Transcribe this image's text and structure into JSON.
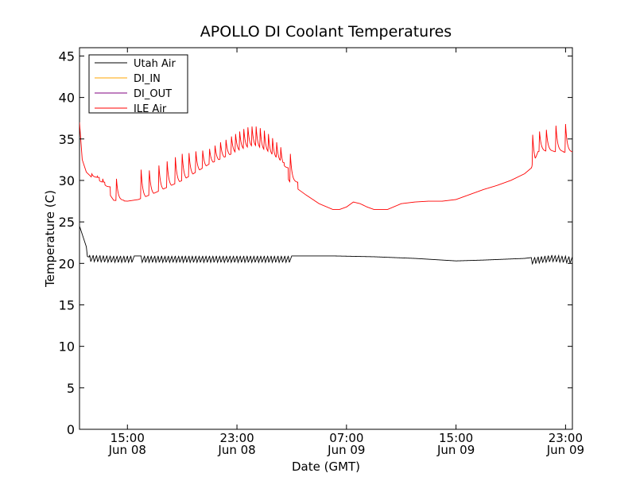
{
  "chart_data": {
    "type": "line",
    "title": "APOLLO DI Coolant Temperatures",
    "xlabel": "Date (GMT)",
    "ylabel": "Temperature (C)",
    "ylim": [
      0,
      46
    ],
    "xlim_hours": [
      11.5,
      47.5
    ],
    "grid": false,
    "legend_position": "top-left",
    "y_ticks": [
      {
        "value": 0,
        "label": "0"
      },
      {
        "value": 5,
        "label": "5"
      },
      {
        "value": 10,
        "label": "10"
      },
      {
        "value": 15,
        "label": "15"
      },
      {
        "value": 20,
        "label": "20"
      },
      {
        "value": 25,
        "label": "25"
      },
      {
        "value": 30,
        "label": "30"
      },
      {
        "value": 35,
        "label": "35"
      },
      {
        "value": 40,
        "label": "40"
      },
      {
        "value": 45,
        "label": "45"
      }
    ],
    "x_ticks": [
      {
        "hour": 15,
        "time": "15:00",
        "date": "Jun 08"
      },
      {
        "hour": 23,
        "time": "23:00",
        "date": "Jun 08"
      },
      {
        "hour": 31,
        "time": "07:00",
        "date": "Jun 09"
      },
      {
        "hour": 39,
        "time": "15:00",
        "date": "Jun 09"
      },
      {
        "hour": 47,
        "time": "23:00",
        "date": "Jun 09"
      }
    ],
    "series": [
      {
        "name": "Utah Air",
        "color": "#000000",
        "baseline_x": [
          11.5,
          12.2,
          14.0,
          16.0,
          20.0,
          24.0,
          27.0,
          30.0,
          33.0,
          36.0,
          39.0,
          41.0,
          44.0,
          46.0,
          47.5
        ],
        "baseline_y": [
          24.5,
          21.0,
          20.9,
          20.9,
          20.9,
          20.9,
          20.9,
          20.9,
          20.8,
          20.6,
          20.3,
          20.4,
          20.6,
          21.0,
          20.8
        ],
        "cycling_x": [
          [
            12.0,
            15.5
          ],
          [
            16.0,
            27.0
          ],
          [
            44.5,
            47.5
          ]
        ],
        "cycling_depth_c": 0.8
      },
      {
        "name": "DI_IN",
        "color": "#ffa500",
        "baseline_x": [],
        "baseline_y": []
      },
      {
        "name": "DI_OUT",
        "color": "#800080",
        "baseline_x": [],
        "baseline_y": []
      },
      {
        "name": "ILE Air",
        "color": "#ff0000",
        "baseline_x": [
          11.5,
          11.7,
          12.0,
          12.5,
          13.0,
          13.5,
          14.0,
          15.0,
          15.8,
          17.0,
          19.0,
          21.0,
          23.0,
          24.0,
          25.0,
          26.0,
          27.0,
          28.0,
          29.0,
          30.0,
          30.5,
          31.0,
          31.5,
          32.0,
          32.5,
          33.0,
          34.0,
          35.0,
          36.0,
          37.0,
          38.0,
          39.0,
          40.0,
          41.0,
          42.0,
          43.0,
          44.0,
          44.5,
          45.0,
          46.0,
          47.0,
          47.5
        ],
        "baseline_y": [
          37.0,
          32.5,
          31.0,
          30.2,
          29.5,
          28.8,
          27.6,
          27.5,
          27.7,
          28.5,
          30.0,
          32.0,
          33.5,
          34.0,
          33.2,
          32.0,
          29.5,
          28.3,
          27.2,
          26.5,
          26.5,
          26.8,
          27.4,
          27.2,
          26.8,
          26.5,
          26.5,
          27.2,
          27.4,
          27.5,
          27.5,
          27.7,
          28.3,
          28.9,
          29.4,
          30.0,
          30.8,
          31.5,
          33.5,
          33.5,
          33.4,
          33.0
        ],
        "spikes": [
          {
            "x": 12.4,
            "peak": 30.8
          },
          {
            "x": 12.8,
            "peak": 30.5
          },
          {
            "x": 13.2,
            "peak": 30.2
          },
          {
            "x": 14.2,
            "peak": 30.2
          },
          {
            "x": 16.0,
            "peak": 31.3
          },
          {
            "x": 16.6,
            "peak": 31.2
          },
          {
            "x": 17.3,
            "peak": 31.8
          },
          {
            "x": 17.9,
            "peak": 32.3
          },
          {
            "x": 18.5,
            "peak": 32.8
          },
          {
            "x": 19.0,
            "peak": 33.2
          },
          {
            "x": 19.5,
            "peak": 33.3
          },
          {
            "x": 20.0,
            "peak": 33.5
          },
          {
            "x": 20.5,
            "peak": 33.6
          },
          {
            "x": 21.0,
            "peak": 33.8
          },
          {
            "x": 21.4,
            "peak": 34.2
          },
          {
            "x": 21.8,
            "peak": 34.6
          },
          {
            "x": 22.2,
            "peak": 34.9
          },
          {
            "x": 22.6,
            "peak": 35.3
          },
          {
            "x": 22.9,
            "peak": 35.6
          },
          {
            "x": 23.2,
            "peak": 35.9
          },
          {
            "x": 23.5,
            "peak": 36.2
          },
          {
            "x": 23.8,
            "peak": 36.4
          },
          {
            "x": 24.1,
            "peak": 36.5
          },
          {
            "x": 24.4,
            "peak": 36.5
          },
          {
            "x": 24.7,
            "peak": 36.3
          },
          {
            "x": 25.0,
            "peak": 36.0
          },
          {
            "x": 25.3,
            "peak": 35.6
          },
          {
            "x": 25.6,
            "peak": 35.1
          },
          {
            "x": 25.9,
            "peak": 34.6
          },
          {
            "x": 26.2,
            "peak": 34.0
          },
          {
            "x": 26.9,
            "peak": 33.2
          },
          {
            "x": 44.6,
            "peak": 35.5
          },
          {
            "x": 45.1,
            "peak": 35.9
          },
          {
            "x": 45.6,
            "peak": 36.1
          },
          {
            "x": 46.3,
            "peak": 36.6
          },
          {
            "x": 47.0,
            "peak": 36.8
          }
        ]
      }
    ]
  }
}
